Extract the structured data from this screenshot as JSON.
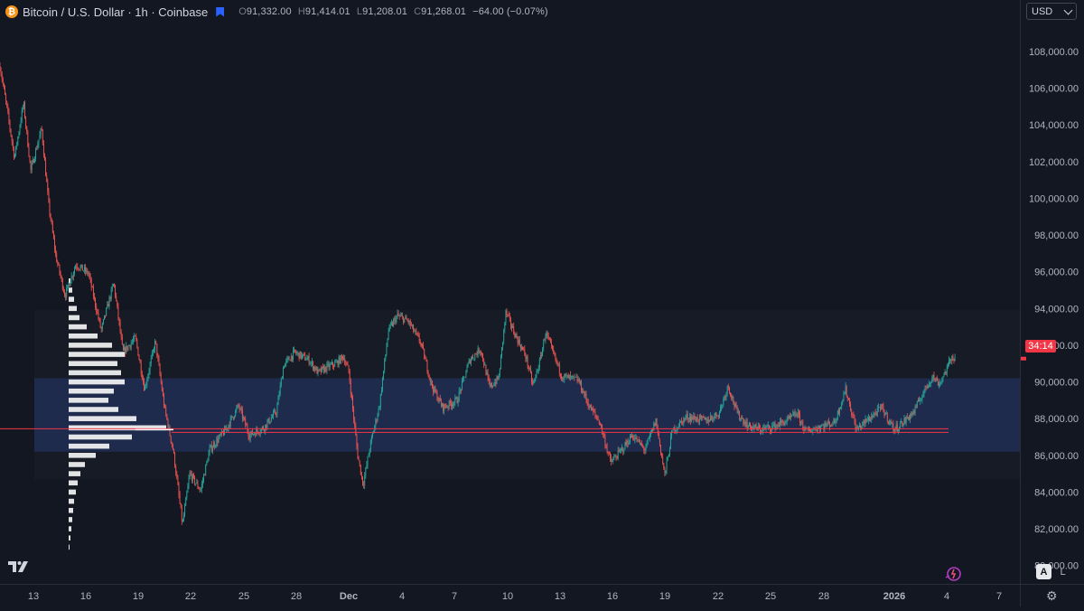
{
  "header": {
    "coin_glyph": "₿",
    "symbol_title": "Bitcoin / U.S. Dollar · 1h · Coinbase",
    "ohlc": {
      "o_label": "O",
      "o": "91,332.00",
      "h_label": "H",
      "h": "91,414.01",
      "l_label": "L",
      "l": "91,208.01",
      "c_label": "C",
      "c": "91,268.01",
      "change": "−64.00 (−0.07%)"
    }
  },
  "currency_select": {
    "value": "USD"
  },
  "countdown": "34:14",
  "bottom_controls": {
    "auto_label": "A",
    "log_label": "L",
    "logo_text": "17"
  },
  "icons": [
    "bitcoin-icon",
    "flag-icon",
    "chevron-down-icon",
    "tradingview-logo-icon",
    "gear-icon",
    "spark-icon"
  ],
  "colors": {
    "up": "#26a69a",
    "down": "#ef5350",
    "value_area": "#1e2b4d",
    "poc": "#f23645",
    "profile": "#ffffff"
  },
  "chart_data": {
    "type": "candlestick",
    "y_ticks": [
      80000,
      82000,
      84000,
      86000,
      88000,
      90000,
      92000,
      94000,
      96000,
      98000,
      100000,
      102000,
      104000,
      106000,
      108000
    ],
    "y_tick_labels": [
      "80,000.00",
      "82,000.00",
      "84,000.00",
      "86,000.00",
      "88,000.00",
      "90,000.00",
      "92,000.00",
      "94,000.00",
      "96,000.00",
      "98,000.00",
      "100,000.00",
      "102,000.00",
      "104,000.00",
      "106,000.00",
      "108,000.00"
    ],
    "ylim": [
      79000,
      110800
    ],
    "x_tick_labels": [
      "13",
      "16",
      "19",
      "22",
      "25",
      "28",
      "Dec",
      "4",
      "7",
      "10",
      "13",
      "16",
      "19",
      "22",
      "25",
      "28",
      "2026",
      "4",
      "7"
    ],
    "x_tick_bold": [
      "Dec",
      "2026"
    ],
    "path": [
      [
        0,
        107200
      ],
      [
        8,
        104800
      ],
      [
        16,
        102200
      ],
      [
        26,
        105200
      ],
      [
        34,
        101500
      ],
      [
        46,
        103800
      ],
      [
        54,
        99600
      ],
      [
        62,
        96800
      ],
      [
        72,
        94700
      ],
      [
        84,
        96400
      ],
      [
        98,
        95900
      ],
      [
        112,
        92800
      ],
      [
        126,
        95400
      ],
      [
        136,
        91600
      ],
      [
        150,
        92400
      ],
      [
        160,
        89600
      ],
      [
        172,
        92200
      ],
      [
        182,
        88600
      ],
      [
        192,
        86200
      ],
      [
        202,
        82200
      ],
      [
        210,
        85000
      ],
      [
        222,
        84100
      ],
      [
        232,
        86300
      ],
      [
        250,
        87400
      ],
      [
        264,
        88700
      ],
      [
        276,
        87100
      ],
      [
        292,
        87500
      ],
      [
        306,
        88400
      ],
      [
        314,
        90900
      ],
      [
        326,
        91600
      ],
      [
        342,
        91200
      ],
      [
        352,
        90500
      ],
      [
        362,
        90800
      ],
      [
        372,
        91000
      ],
      [
        380,
        91400
      ],
      [
        386,
        90600
      ],
      [
        396,
        86000
      ],
      [
        402,
        84400
      ],
      [
        410,
        86600
      ],
      [
        420,
        88700
      ],
      [
        430,
        92800
      ],
      [
        440,
        93600
      ],
      [
        452,
        93300
      ],
      [
        466,
        92100
      ],
      [
        478,
        89800
      ],
      [
        490,
        88600
      ],
      [
        506,
        89000
      ],
      [
        520,
        91200
      ],
      [
        532,
        91800
      ],
      [
        542,
        89700
      ],
      [
        552,
        90200
      ],
      [
        560,
        93800
      ],
      [
        570,
        92600
      ],
      [
        582,
        91400
      ],
      [
        590,
        89800
      ],
      [
        598,
        91200
      ],
      [
        604,
        92700
      ],
      [
        612,
        91600
      ],
      [
        622,
        90300
      ],
      [
        640,
        90100
      ],
      [
        652,
        88700
      ],
      [
        664,
        87800
      ],
      [
        676,
        85600
      ],
      [
        690,
        86400
      ],
      [
        700,
        87100
      ],
      [
        714,
        86300
      ],
      [
        726,
        87900
      ],
      [
        736,
        84900
      ],
      [
        744,
        87300
      ],
      [
        760,
        88100
      ],
      [
        782,
        87900
      ],
      [
        796,
        88300
      ],
      [
        806,
        89800
      ],
      [
        816,
        88300
      ],
      [
        828,
        87600
      ],
      [
        842,
        87400
      ],
      [
        858,
        87600
      ],
      [
        872,
        87900
      ],
      [
        882,
        88300
      ],
      [
        892,
        87300
      ],
      [
        910,
        87600
      ],
      [
        924,
        87800
      ],
      [
        936,
        89600
      ],
      [
        948,
        87400
      ],
      [
        962,
        88000
      ],
      [
        976,
        88600
      ],
      [
        990,
        87400
      ],
      [
        1000,
        87800
      ],
      [
        1012,
        88400
      ],
      [
        1022,
        89400
      ],
      [
        1032,
        90300
      ],
      [
        1040,
        89900
      ],
      [
        1048,
        90700
      ],
      [
        1054,
        91400
      ],
      [
        1058,
        91270
      ]
    ],
    "value_area": {
      "top": 90200,
      "bottom": 86200,
      "x_start": 38,
      "x_end": 1129
    },
    "outer_range": {
      "top": 93900,
      "bottom": 84700
    },
    "poc_levels": [
      87450,
      87250
    ],
    "volume_profile": {
      "x_left": 76,
      "rows": [
        [
          81000,
          1
        ],
        [
          81500,
          2
        ],
        [
          82000,
          3
        ],
        [
          82500,
          4
        ],
        [
          83000,
          5
        ],
        [
          83500,
          6
        ],
        [
          84000,
          8
        ],
        [
          84500,
          10
        ],
        [
          85000,
          13
        ],
        [
          85500,
          18
        ],
        [
          86000,
          30
        ],
        [
          86500,
          45
        ],
        [
          87000,
          70
        ],
        [
          87500,
          108
        ],
        [
          88000,
          75
        ],
        [
          88500,
          55
        ],
        [
          89000,
          44
        ],
        [
          89500,
          50
        ],
        [
          90000,
          62
        ],
        [
          90500,
          58
        ],
        [
          91000,
          54
        ],
        [
          91500,
          62
        ],
        [
          92000,
          48
        ],
        [
          92500,
          32
        ],
        [
          93000,
          20
        ],
        [
          93500,
          12
        ],
        [
          94000,
          9
        ],
        [
          94500,
          6
        ],
        [
          95000,
          4
        ],
        [
          95500,
          2
        ]
      ]
    }
  }
}
